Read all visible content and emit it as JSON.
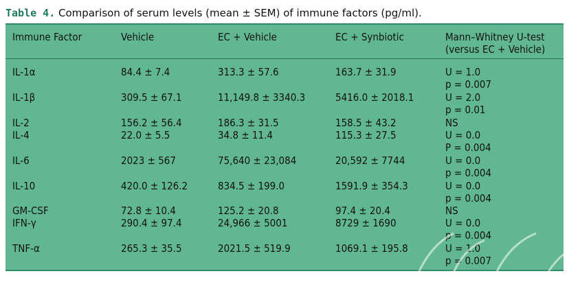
{
  "caption": {
    "label": "Table 4.",
    "text": "Comparison of serum levels (mean ± SEM) of immune factors (pg/ml)."
  },
  "headers": {
    "factor": "Immune Factor",
    "vehicle": "Vehicle",
    "ec_vehicle": "EC + Vehicle",
    "ec_synbiotic": "EC + Synbiotic",
    "mw_line1": "Mann–Whitney U-test",
    "mw_line2": "(versus EC + Vehicle)"
  },
  "rows": [
    {
      "factor": "IL-1α",
      "vehicle": "84.4 ± 7.4",
      "ec_vehicle": "313.3 ± 57.6",
      "ec_synbiotic": "163.7 ± 31.9",
      "mw1": "U = 1.0",
      "mw2": "p = 0.007"
    },
    {
      "factor": "IL-1β",
      "vehicle": "309.5 ± 67.1",
      "ec_vehicle": "11,149.8 ± 3340.3",
      "ec_synbiotic": "5416.0 ± 2018.1",
      "mw1": "U = 2.0",
      "mw2": "p = 0.01"
    },
    {
      "factor": "IL-2",
      "vehicle": "156.2 ± 56.4",
      "ec_vehicle": "186.3 ± 31.5",
      "ec_synbiotic": "158.5 ± 43.2",
      "mw1": "NS",
      "mw2": ""
    },
    {
      "factor": "IL-4",
      "vehicle": "22.0 ± 5.5",
      "ec_vehicle": "34.8 ± 11.4",
      "ec_synbiotic": "115.3 ± 27.5",
      "mw1": "U = 0.0",
      "mw2": "P = 0.004"
    },
    {
      "factor": "IL-6",
      "vehicle": "2023 ± 567",
      "ec_vehicle": "75,640 ± 23,084",
      "ec_synbiotic": "20,592 ± 7744",
      "mw1": "U = 0.0",
      "mw2": "p = 0.004"
    },
    {
      "factor": "IL-10",
      "vehicle": "420.0 ± 126.2",
      "ec_vehicle": "834.5 ± 199.0",
      "ec_synbiotic": "1591.9 ± 354.3",
      "mw1": "U = 0.0",
      "mw2": "p = 0.004"
    },
    {
      "factor": "GM-CSF",
      "vehicle": "72.8 ± 10.4",
      "ec_vehicle": "125.2 ± 20.8",
      "ec_synbiotic": "97.4 ± 20.4",
      "mw1": "NS",
      "mw2": ""
    },
    {
      "factor": "IFN-γ",
      "vehicle": "290.4 ± 97.4",
      "ec_vehicle": "24,966 ± 5001",
      "ec_synbiotic": "8729 ± 1690",
      "mw1": "U = 0.0",
      "mw2": "p = 0.004"
    },
    {
      "factor": "TNF-α",
      "vehicle": "265.3 ± 35.5",
      "ec_vehicle": "2021.5 ± 519.9",
      "ec_synbiotic": "1069.1 ± 195.8",
      "mw1": "U = 1.0",
      "mw2": "p = 0.007"
    }
  ],
  "colors": {
    "table_bg": "#62b793",
    "rule": "#2e8a64",
    "caption_label": "#1f7a5a"
  }
}
